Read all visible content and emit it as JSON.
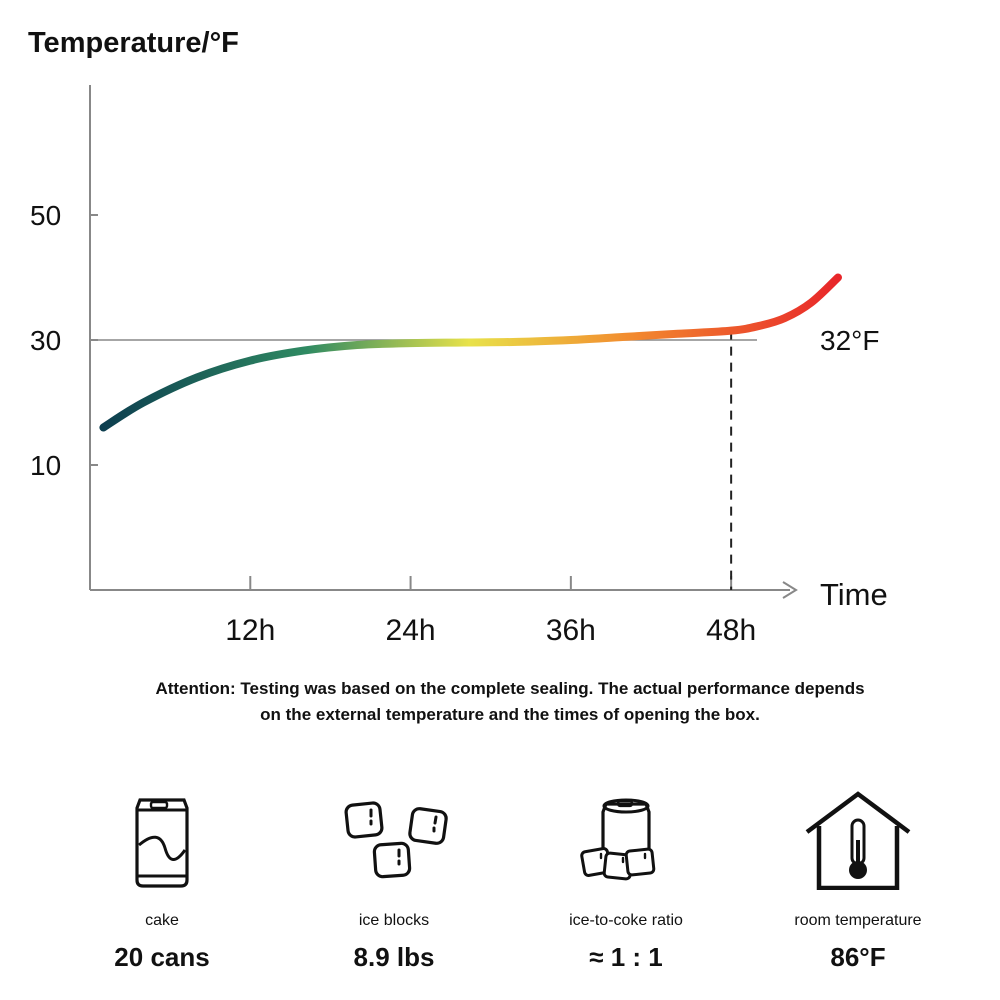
{
  "chart_data": {
    "type": "line",
    "ylabel": "Temperature/°F",
    "xlabel": "Time",
    "y_ticks": [
      10,
      30,
      50
    ],
    "x_ticks": [
      12,
      24,
      36,
      48
    ],
    "x_tick_labels": [
      "12h",
      "24h",
      "36h",
      "48h"
    ],
    "xlim": [
      0,
      56
    ],
    "ylim": [
      -10,
      70
    ],
    "grid": false,
    "reference_line": {
      "y": 30,
      "label": "32°F"
    },
    "marker_x": 48,
    "series": [
      {
        "x": [
          1,
          4,
          8,
          12,
          16,
          20,
          24,
          28,
          32,
          36,
          40,
          44,
          48,
          50,
          52,
          54,
          56
        ],
        "y": [
          16,
          20,
          24,
          26.7,
          28.3,
          29.2,
          29.5,
          29.6,
          29.7,
          30,
          30.5,
          31,
          31.5,
          32.2,
          33.5,
          36,
          40
        ],
        "gradient": [
          "#0c3d4f",
          "#2f8a62",
          "#e8e24a",
          "#f28a2e",
          "#e8262a"
        ]
      }
    ]
  },
  "note": {
    "line1": "Attention: Testing was based on the complete sealing. The actual performance depends",
    "line2": "on the external temperature and the times of opening the box."
  },
  "features": [
    {
      "icon": "soda-can-icon",
      "label": "cake",
      "value": "20 cans"
    },
    {
      "icon": "ice-cubes-icon",
      "label": "ice blocks",
      "value": "8.9 lbs"
    },
    {
      "icon": "can-with-ice-icon",
      "label": "ice-to-coke ratio",
      "value": "≈ 1 : 1"
    },
    {
      "icon": "house-thermometer-icon",
      "label": "room temperature",
      "value": "86°F"
    }
  ]
}
